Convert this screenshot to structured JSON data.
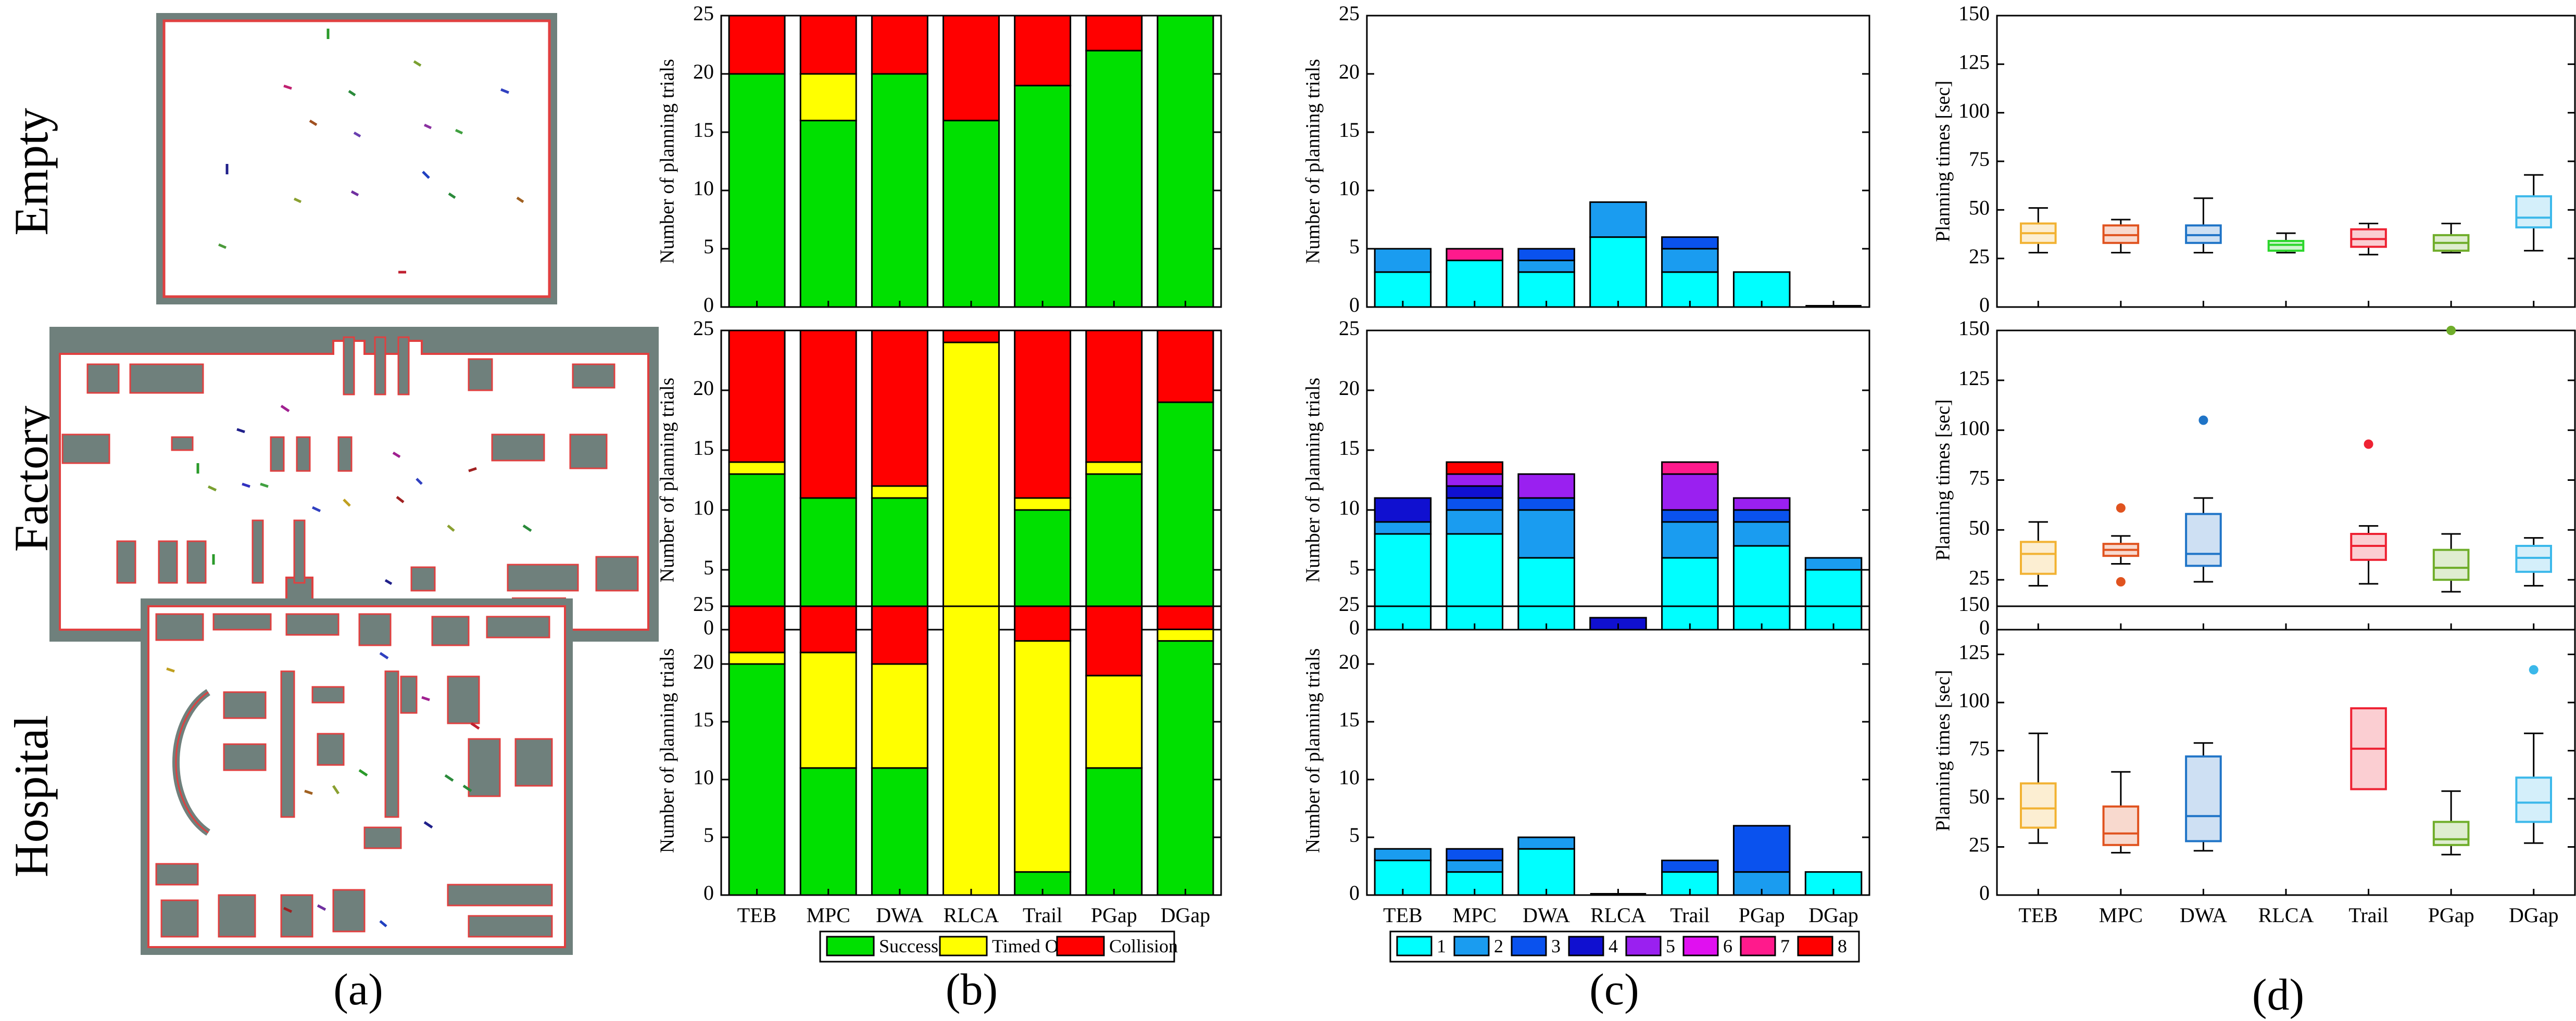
{
  "figure": {
    "panel_labels": [
      "(a)",
      "(b)",
      "(c)",
      "(d)"
    ],
    "environments": [
      "Empty",
      "Factory",
      "Hospital"
    ]
  },
  "colors": {
    "success": "#00e000",
    "timed_out": "#ffff00",
    "collision": "#ff0000",
    "map_wall": "#6f807c",
    "map_free": "#ffffff",
    "map_outline": "#e04040",
    "counts": [
      "#00ffff",
      "#1a9cf0",
      "#0a52ee",
      "#1010d0",
      "#9a20f0",
      "#e010f0",
      "#ff1a8c",
      "#ff0000"
    ],
    "box": {
      "TEB": "#f2b233",
      "MPC": "#e0531f",
      "DWA": "#1f74c7",
      "RLCA": "#2bd62b",
      "Trail": "#ee2233",
      "PGap": "#6fad2a",
      "DGap": "#3bb8ea"
    }
  },
  "chart_data": [
    {
      "panel": "(b)",
      "type": "bar",
      "stacked": true,
      "ylabel": "Number of planning trials",
      "ylim": [
        0,
        25
      ],
      "yticks": [
        0,
        5,
        10,
        15,
        20,
        25
      ],
      "categories": [
        "TEB",
        "MPC",
        "DWA",
        "RLCA",
        "Trail",
        "PGap",
        "DGap"
      ],
      "legend": {
        "placement": "bottom",
        "entries": [
          "Success",
          "Timed Out",
          "Collision"
        ]
      },
      "environments": [
        {
          "name": "Empty",
          "series": [
            {
              "name": "Success",
              "values": [
                20,
                16,
                20,
                16,
                19,
                22,
                25
              ]
            },
            {
              "name": "Timed Out",
              "values": [
                0,
                4,
                0,
                0,
                0,
                0,
                0
              ]
            },
            {
              "name": "Collision",
              "values": [
                5,
                5,
                5,
                9,
                6,
                3,
                0
              ]
            }
          ]
        },
        {
          "name": "Factory",
          "series": [
            {
              "name": "Success",
              "values": [
                13,
                11,
                11,
                0,
                10,
                13,
                19
              ]
            },
            {
              "name": "Timed Out",
              "values": [
                1,
                0,
                1,
                24,
                1,
                1,
                0
              ]
            },
            {
              "name": "Collision",
              "values": [
                11,
                14,
                13,
                1,
                14,
                11,
                6
              ]
            }
          ]
        },
        {
          "name": "Hospital",
          "series": [
            {
              "name": "Success",
              "values": [
                20,
                11,
                11,
                0,
                2,
                11,
                22
              ]
            },
            {
              "name": "Timed Out",
              "values": [
                1,
                10,
                9,
                25,
                20,
                8,
                1
              ]
            },
            {
              "name": "Collision",
              "values": [
                4,
                4,
                5,
                0,
                3,
                6,
                2
              ]
            }
          ]
        }
      ]
    },
    {
      "panel": "(c)",
      "type": "bar",
      "stacked": true,
      "ylabel": "Number of planning trials",
      "ylim": [
        0,
        25
      ],
      "yticks": [
        0,
        5,
        10,
        15,
        20,
        25
      ],
      "categories": [
        "TEB",
        "MPC",
        "DWA",
        "RLCA",
        "Trail",
        "PGap",
        "DGap"
      ],
      "legend": {
        "placement": "bottom",
        "entries": [
          "1",
          "2",
          "3",
          "4",
          "5",
          "6",
          "7",
          "8"
        ]
      },
      "environments": [
        {
          "name": "Empty",
          "series": [
            {
              "name": "1",
              "values": [
                3,
                4,
                3,
                6,
                3,
                3,
                0
              ]
            },
            {
              "name": "2",
              "values": [
                2,
                0,
                1,
                3,
                2,
                0,
                0
              ]
            },
            {
              "name": "3",
              "values": [
                0,
                0,
                1,
                0,
                1,
                0,
                0
              ]
            },
            {
              "name": "4",
              "values": [
                0,
                0,
                0,
                0,
                0,
                0,
                0
              ]
            },
            {
              "name": "5",
              "values": [
                0,
                0,
                0,
                0,
                0,
                0,
                0
              ]
            },
            {
              "name": "6",
              "values": [
                0,
                0,
                0,
                0,
                0,
                0,
                0
              ]
            },
            {
              "name": "7",
              "values": [
                0,
                1,
                0,
                0,
                0,
                0,
                0
              ]
            },
            {
              "name": "8",
              "values": [
                0,
                0,
                0,
                0,
                0,
                0,
                0
              ]
            }
          ]
        },
        {
          "name": "Factory",
          "series": [
            {
              "name": "1",
              "values": [
                8,
                8,
                6,
                0,
                6,
                7,
                5
              ]
            },
            {
              "name": "2",
              "values": [
                1,
                2,
                4,
                0,
                3,
                2,
                1
              ]
            },
            {
              "name": "3",
              "values": [
                0,
                1,
                1,
                0,
                1,
                1,
                0
              ]
            },
            {
              "name": "4",
              "values": [
                2,
                1,
                0,
                1,
                0,
                0,
                0
              ]
            },
            {
              "name": "5",
              "values": [
                0,
                1,
                2,
                0,
                3,
                1,
                0
              ]
            },
            {
              "name": "6",
              "values": [
                0,
                0,
                0,
                0,
                0,
                0,
                0
              ]
            },
            {
              "name": "7",
              "values": [
                0,
                0,
                0,
                0,
                1,
                0,
                0
              ]
            },
            {
              "name": "8",
              "values": [
                0,
                1,
                0,
                0,
                0,
                0,
                0
              ]
            }
          ]
        },
        {
          "name": "Hospital",
          "series": [
            {
              "name": "1",
              "values": [
                3,
                2,
                4,
                0,
                2,
                0,
                2
              ]
            },
            {
              "name": "2",
              "values": [
                1,
                1,
                1,
                0,
                0,
                2,
                0
              ]
            },
            {
              "name": "3",
              "values": [
                0,
                1,
                0,
                0,
                1,
                4,
                0
              ]
            },
            {
              "name": "4",
              "values": [
                0,
                0,
                0,
                0,
                0,
                0,
                0
              ]
            },
            {
              "name": "5",
              "values": [
                0,
                0,
                0,
                0,
                0,
                0,
                0
              ]
            },
            {
              "name": "6",
              "values": [
                0,
                0,
                0,
                0,
                0,
                0,
                0
              ]
            },
            {
              "name": "7",
              "values": [
                0,
                0,
                0,
                0,
                0,
                0,
                0
              ]
            },
            {
              "name": "8",
              "values": [
                0,
                0,
                0,
                0,
                0,
                0,
                0
              ]
            }
          ]
        }
      ]
    },
    {
      "panel": "(d)",
      "type": "box",
      "ylabel": "Planning times [sec]",
      "ylim": [
        0,
        150
      ],
      "yticks": [
        0,
        25,
        50,
        75,
        100,
        125,
        150
      ],
      "categories": [
        "TEB",
        "MPC",
        "DWA",
        "RLCA",
        "Trail",
        "PGap",
        "DGap"
      ],
      "environments": [
        {
          "name": "Empty",
          "boxes": [
            {
              "min": 28,
              "q1": 33,
              "median": 38,
              "q3": 43,
              "max": 51,
              "outliers": []
            },
            {
              "min": 28,
              "q1": 33,
              "median": 37,
              "q3": 42,
              "max": 45,
              "outliers": []
            },
            {
              "min": 28,
              "q1": 33,
              "median": 37,
              "q3": 42,
              "max": 56,
              "outliers": []
            },
            {
              "min": 28,
              "q1": 29,
              "median": 32,
              "q3": 34,
              "max": 38,
              "outliers": []
            },
            {
              "min": 27,
              "q1": 31,
              "median": 35,
              "q3": 40,
              "max": 43,
              "outliers": []
            },
            {
              "min": 28,
              "q1": 29,
              "median": 33,
              "q3": 37,
              "max": 43,
              "outliers": []
            },
            {
              "min": 29,
              "q1": 41,
              "median": 46,
              "q3": 57,
              "max": 68,
              "outliers": []
            }
          ]
        },
        {
          "name": "Factory",
          "boxes": [
            {
              "min": 22,
              "q1": 28,
              "median": 38,
              "q3": 44,
              "max": 54,
              "outliers": []
            },
            {
              "min": 33,
              "q1": 37,
              "median": 40,
              "q3": 43,
              "max": 47,
              "outliers": [
                24,
                61
              ]
            },
            {
              "min": 24,
              "q1": 32,
              "median": 38,
              "q3": 58,
              "max": 66,
              "outliers": [
                105
              ]
            },
            null,
            {
              "min": 23,
              "q1": 35,
              "median": 42,
              "q3": 48,
              "max": 52,
              "outliers": [
                93
              ]
            },
            {
              "min": 19,
              "q1": 25,
              "median": 31,
              "q3": 40,
              "max": 48,
              "outliers": [
                150
              ]
            },
            {
              "min": 22,
              "q1": 29,
              "median": 36,
              "q3": 42,
              "max": 46,
              "outliers": []
            }
          ]
        },
        {
          "name": "Hospital",
          "boxes": [
            {
              "min": 27,
              "q1": 35,
              "median": 45,
              "q3": 58,
              "max": 84,
              "outliers": []
            },
            {
              "min": 22,
              "q1": 26,
              "median": 32,
              "q3": 46,
              "max": 64,
              "outliers": []
            },
            {
              "min": 23,
              "q1": 28,
              "median": 41,
              "q3": 72,
              "max": 79,
              "outliers": []
            },
            null,
            {
              "min": 55,
              "q1": 55,
              "median": 76,
              "q3": 97,
              "max": 97,
              "outliers": []
            },
            {
              "min": 21,
              "q1": 26,
              "median": 29,
              "q3": 38,
              "max": 54,
              "outliers": []
            },
            {
              "min": 27,
              "q1": 38,
              "median": 48,
              "q3": 61,
              "max": 84,
              "outliers": [
                117
              ]
            }
          ]
        }
      ]
    }
  ]
}
